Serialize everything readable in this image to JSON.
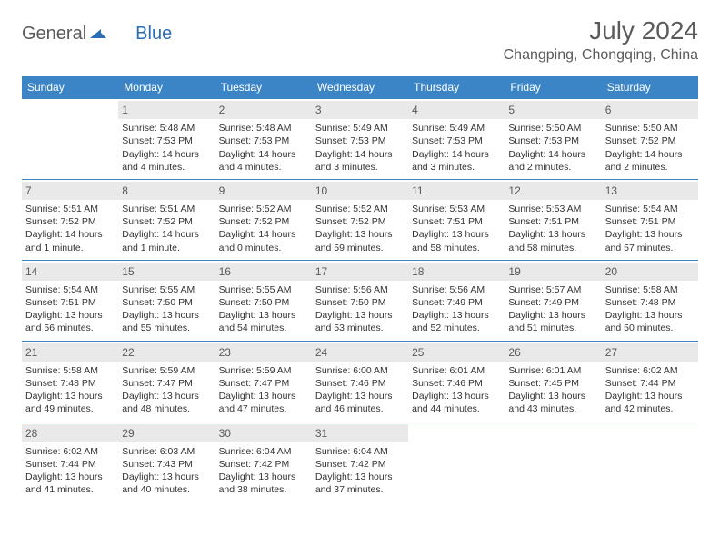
{
  "brand": {
    "part1": "General",
    "part2": "Blue"
  },
  "title": "July 2024",
  "location": "Changping, Chongqing, China",
  "colors": {
    "header_bg": "#3b85c7",
    "header_text": "#ffffff",
    "daynum_bg": "#e9e9e9",
    "text": "#333333",
    "title_text": "#5a5a5a",
    "rule": "#3b85c7"
  },
  "weekday_labels": [
    "Sunday",
    "Monday",
    "Tuesday",
    "Wednesday",
    "Thursday",
    "Friday",
    "Saturday"
  ],
  "weeks": [
    [
      null,
      {
        "n": "1",
        "sr": "5:48 AM",
        "ss": "7:53 PM",
        "dl": "14 hours and 4 minutes."
      },
      {
        "n": "2",
        "sr": "5:48 AM",
        "ss": "7:53 PM",
        "dl": "14 hours and 4 minutes."
      },
      {
        "n": "3",
        "sr": "5:49 AM",
        "ss": "7:53 PM",
        "dl": "14 hours and 3 minutes."
      },
      {
        "n": "4",
        "sr": "5:49 AM",
        "ss": "7:53 PM",
        "dl": "14 hours and 3 minutes."
      },
      {
        "n": "5",
        "sr": "5:50 AM",
        "ss": "7:53 PM",
        "dl": "14 hours and 2 minutes."
      },
      {
        "n": "6",
        "sr": "5:50 AM",
        "ss": "7:52 PM",
        "dl": "14 hours and 2 minutes."
      }
    ],
    [
      {
        "n": "7",
        "sr": "5:51 AM",
        "ss": "7:52 PM",
        "dl": "14 hours and 1 minute."
      },
      {
        "n": "8",
        "sr": "5:51 AM",
        "ss": "7:52 PM",
        "dl": "14 hours and 1 minute."
      },
      {
        "n": "9",
        "sr": "5:52 AM",
        "ss": "7:52 PM",
        "dl": "14 hours and 0 minutes."
      },
      {
        "n": "10",
        "sr": "5:52 AM",
        "ss": "7:52 PM",
        "dl": "13 hours and 59 minutes."
      },
      {
        "n": "11",
        "sr": "5:53 AM",
        "ss": "7:51 PM",
        "dl": "13 hours and 58 minutes."
      },
      {
        "n": "12",
        "sr": "5:53 AM",
        "ss": "7:51 PM",
        "dl": "13 hours and 58 minutes."
      },
      {
        "n": "13",
        "sr": "5:54 AM",
        "ss": "7:51 PM",
        "dl": "13 hours and 57 minutes."
      }
    ],
    [
      {
        "n": "14",
        "sr": "5:54 AM",
        "ss": "7:51 PM",
        "dl": "13 hours and 56 minutes."
      },
      {
        "n": "15",
        "sr": "5:55 AM",
        "ss": "7:50 PM",
        "dl": "13 hours and 55 minutes."
      },
      {
        "n": "16",
        "sr": "5:55 AM",
        "ss": "7:50 PM",
        "dl": "13 hours and 54 minutes."
      },
      {
        "n": "17",
        "sr": "5:56 AM",
        "ss": "7:50 PM",
        "dl": "13 hours and 53 minutes."
      },
      {
        "n": "18",
        "sr": "5:56 AM",
        "ss": "7:49 PM",
        "dl": "13 hours and 52 minutes."
      },
      {
        "n": "19",
        "sr": "5:57 AM",
        "ss": "7:49 PM",
        "dl": "13 hours and 51 minutes."
      },
      {
        "n": "20",
        "sr": "5:58 AM",
        "ss": "7:48 PM",
        "dl": "13 hours and 50 minutes."
      }
    ],
    [
      {
        "n": "21",
        "sr": "5:58 AM",
        "ss": "7:48 PM",
        "dl": "13 hours and 49 minutes."
      },
      {
        "n": "22",
        "sr": "5:59 AM",
        "ss": "7:47 PM",
        "dl": "13 hours and 48 minutes."
      },
      {
        "n": "23",
        "sr": "5:59 AM",
        "ss": "7:47 PM",
        "dl": "13 hours and 47 minutes."
      },
      {
        "n": "24",
        "sr": "6:00 AM",
        "ss": "7:46 PM",
        "dl": "13 hours and 46 minutes."
      },
      {
        "n": "25",
        "sr": "6:01 AM",
        "ss": "7:46 PM",
        "dl": "13 hours and 44 minutes."
      },
      {
        "n": "26",
        "sr": "6:01 AM",
        "ss": "7:45 PM",
        "dl": "13 hours and 43 minutes."
      },
      {
        "n": "27",
        "sr": "6:02 AM",
        "ss": "7:44 PM",
        "dl": "13 hours and 42 minutes."
      }
    ],
    [
      {
        "n": "28",
        "sr": "6:02 AM",
        "ss": "7:44 PM",
        "dl": "13 hours and 41 minutes."
      },
      {
        "n": "29",
        "sr": "6:03 AM",
        "ss": "7:43 PM",
        "dl": "13 hours and 40 minutes."
      },
      {
        "n": "30",
        "sr": "6:04 AM",
        "ss": "7:42 PM",
        "dl": "13 hours and 38 minutes."
      },
      {
        "n": "31",
        "sr": "6:04 AM",
        "ss": "7:42 PM",
        "dl": "13 hours and 37 minutes."
      },
      null,
      null,
      null
    ]
  ],
  "labels": {
    "sunrise": "Sunrise:",
    "sunset": "Sunset:",
    "daylight": "Daylight:"
  }
}
